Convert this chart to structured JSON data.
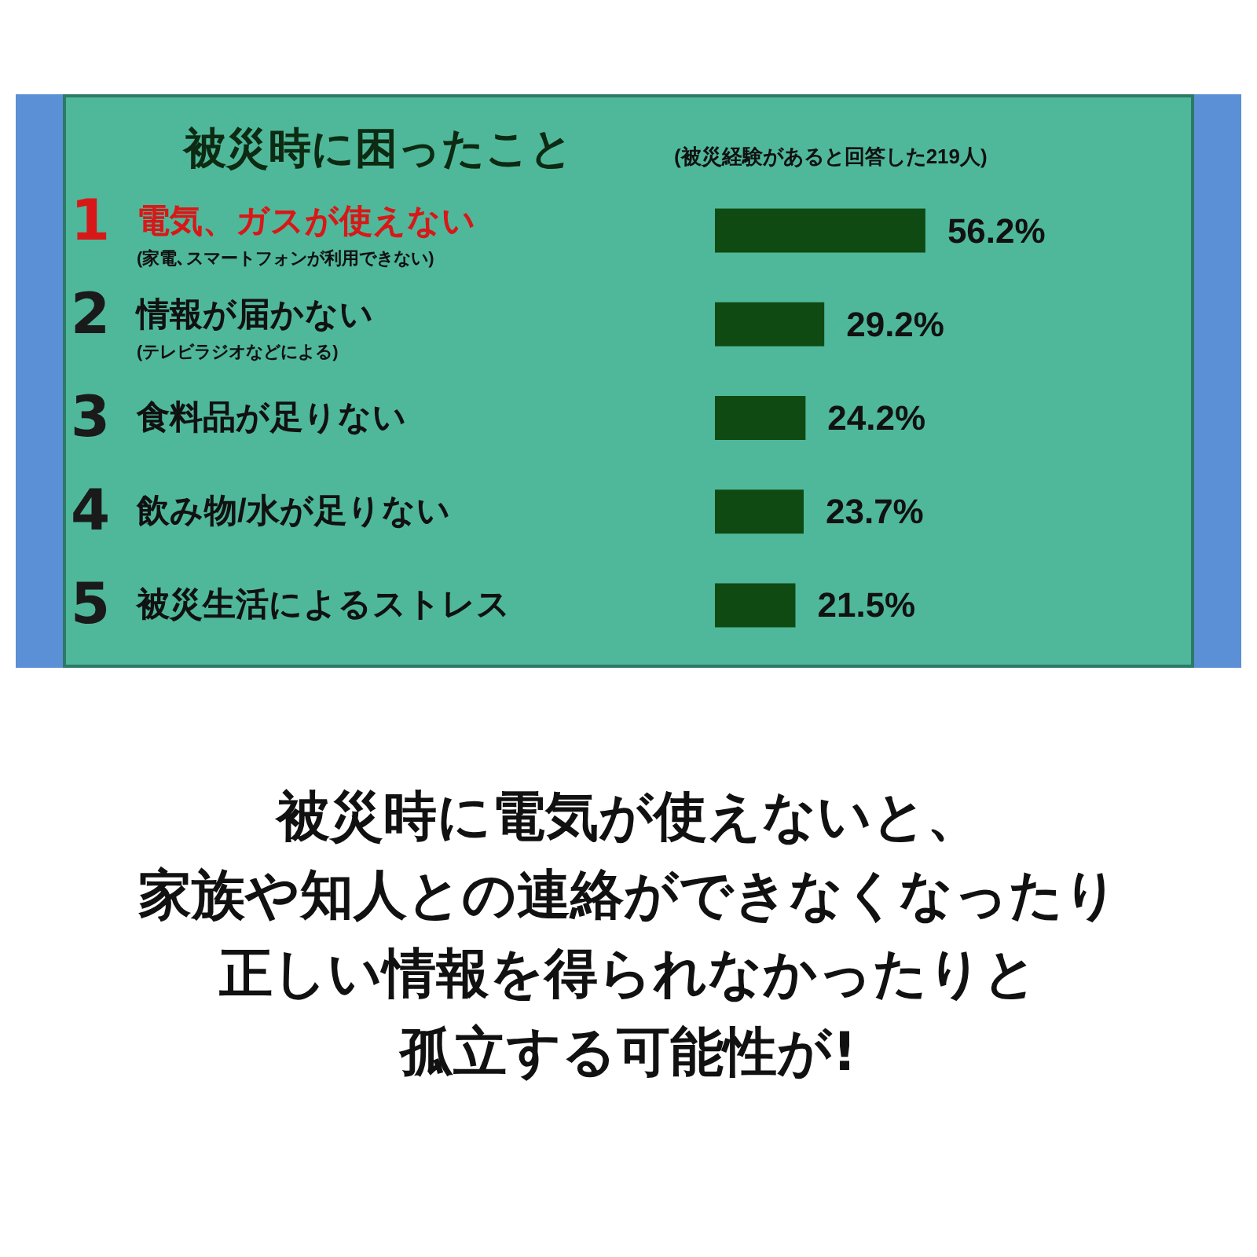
{
  "chart_data": {
    "type": "bar",
    "orientation": "horizontal",
    "title": "被災時に困ったこと",
    "subtitle": "(被災経験があると回答した219人)",
    "categories": [
      "1 電気、ガスが使えない\n(家電､スマートフォンが利用できない)",
      "2 情報が届かない\n(テレビラジオなどによる)",
      "3 食料品が足りない",
      "4 飲み物/水が足りない",
      "5 被災生活によるストレス"
    ],
    "values": [
      56.2,
      29.2,
      24.2,
      23.7,
      21.5
    ],
    "value_labels": [
      "56.2%",
      "29.2%",
      "24.2%",
      "23.7%",
      "21.5%"
    ],
    "color": "#0f4a12",
    "annotations": [
      "被災時に電気が使えないと、",
      "家族や知人との連絡ができなくなったり",
      "正しい情報を得られなかったりと",
      "孤立する可能性が!"
    ]
  }
}
